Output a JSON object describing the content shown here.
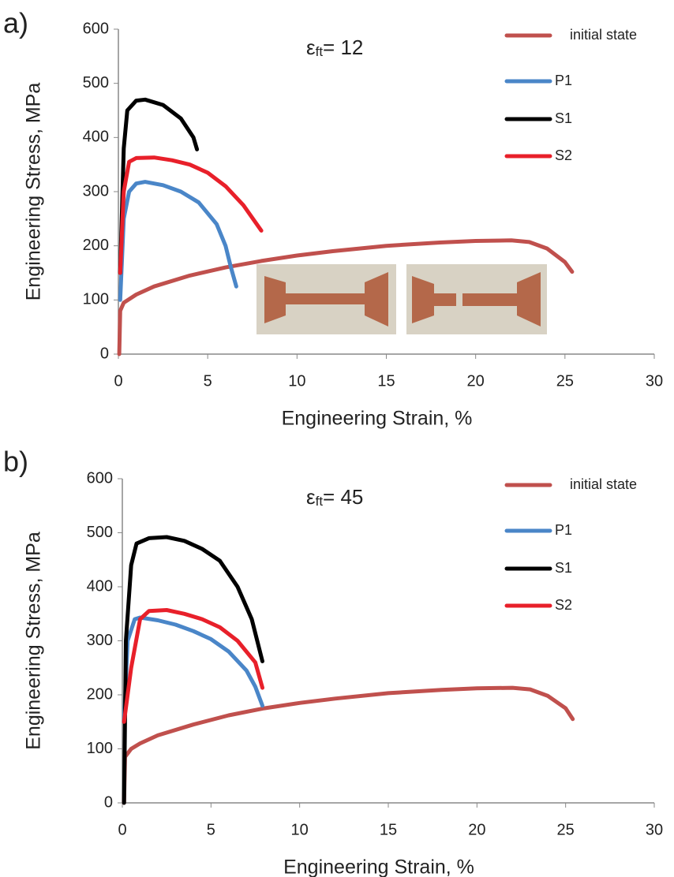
{
  "chart_data": [
    {
      "type": "line",
      "panel_label": "a)",
      "annotation": {
        "symbol": "ε",
        "subscript": "ft",
        "text": "= 12"
      },
      "xlabel": "Engineering Strain, %",
      "ylabel": "Engineering Stress, MPa",
      "xlim": [
        0,
        30
      ],
      "xticks": [
        0,
        5,
        10,
        15,
        20,
        25,
        30
      ],
      "ylim": [
        0,
        600
      ],
      "yticks": [
        0,
        100,
        200,
        300,
        400,
        500,
        600
      ],
      "grid": false,
      "legend": "upper right",
      "series": [
        {
          "name": "initial state",
          "color": "#c0504d",
          "x": [
            0.05,
            0.1,
            0.3,
            1,
            2,
            4,
            6,
            8,
            10,
            12,
            15,
            18,
            20,
            22,
            23,
            24,
            25,
            25.4
          ],
          "values": [
            0,
            80,
            95,
            110,
            125,
            145,
            160,
            172,
            182,
            190,
            200,
            206,
            209,
            210,
            207,
            195,
            170,
            152
          ]
        },
        {
          "name": "P1",
          "color": "#4a86c8",
          "x": [
            0.1,
            0.3,
            0.6,
            1,
            1.5,
            2.5,
            3.5,
            4.5,
            5.5,
            6,
            6.3,
            6.6
          ],
          "values": [
            100,
            250,
            300,
            315,
            318,
            312,
            300,
            280,
            240,
            200,
            160,
            125
          ]
        },
        {
          "name": "S1",
          "color": "#000000",
          "x": [
            0.1,
            0.3,
            0.5,
            1,
            1.5,
            2.5,
            3.5,
            4.2,
            4.4
          ],
          "values": [
            150,
            380,
            450,
            468,
            470,
            460,
            435,
            400,
            378
          ]
        },
        {
          "name": "S2",
          "color": "#e8202a",
          "x": [
            0.1,
            0.3,
            0.6,
            1,
            2,
            3,
            4,
            5,
            6,
            7,
            8
          ],
          "values": [
            150,
            300,
            355,
            362,
            363,
            358,
            350,
            335,
            310,
            275,
            228
          ]
        }
      ]
    },
    {
      "type": "line",
      "panel_label": "b)",
      "annotation": {
        "symbol": "ε",
        "subscript": "ft",
        "text": "= 45"
      },
      "xlabel": "Engineering Strain, %",
      "ylabel": "Engineering Stress, MPa",
      "xlim": [
        0,
        30
      ],
      "xticks": [
        0,
        5,
        10,
        15,
        20,
        25,
        30
      ],
      "ylim": [
        0,
        600
      ],
      "yticks": [
        0,
        100,
        200,
        300,
        400,
        500,
        600
      ],
      "grid": false,
      "legend": "upper right",
      "series": [
        {
          "name": "initial state",
          "color": "#c0504d",
          "x": [
            0.1,
            0.15,
            0.5,
            1,
            2,
            4,
            6,
            8,
            10,
            12,
            15,
            18,
            20,
            22,
            23,
            24,
            25,
            25.4
          ],
          "values": [
            0,
            85,
            100,
            110,
            125,
            145,
            162,
            175,
            185,
            193,
            203,
            209,
            212,
            213,
            210,
            198,
            175,
            155
          ]
        },
        {
          "name": "P1",
          "color": "#4a86c8",
          "x": [
            0.1,
            0.3,
            0.7,
            1,
            2,
            3,
            4,
            5,
            6,
            7,
            7.5,
            7.9
          ],
          "values": [
            150,
            300,
            340,
            343,
            338,
            330,
            318,
            303,
            280,
            245,
            215,
            180
          ]
        },
        {
          "name": "S1",
          "color": "#000000",
          "x": [
            0.1,
            0.2,
            0.5,
            0.8,
            1.5,
            2.5,
            3.5,
            4.5,
            5.5,
            6.5,
            7.3,
            7.9
          ],
          "values": [
            0,
            300,
            440,
            480,
            490,
            492,
            485,
            470,
            448,
            400,
            340,
            262
          ]
        },
        {
          "name": "S2",
          "color": "#e8202a",
          "x": [
            0.1,
            0.5,
            1,
            1.5,
            2.5,
            3.5,
            4.5,
            5.5,
            6.5,
            7.5,
            7.9
          ],
          "values": [
            150,
            250,
            340,
            355,
            357,
            350,
            340,
            325,
            300,
            260,
            213
          ]
        }
      ]
    }
  ]
}
